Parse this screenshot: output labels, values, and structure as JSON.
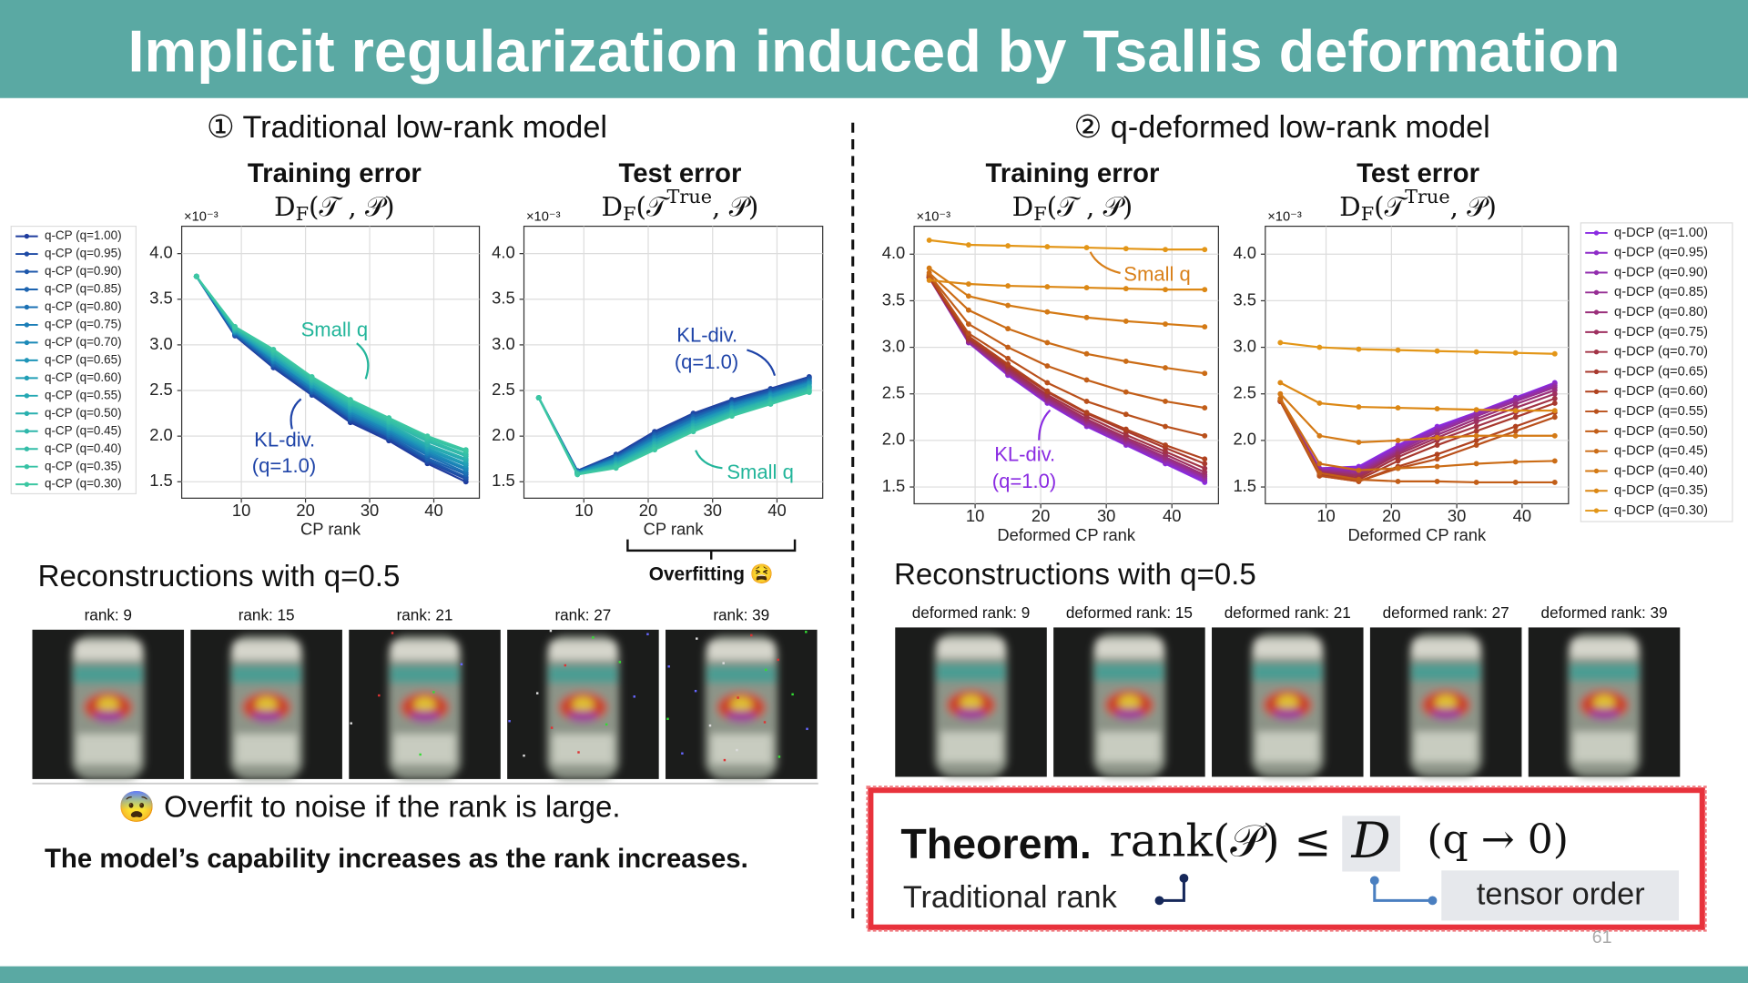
{
  "header": {
    "title": "Implicit regularization induced by Tsallis deformation"
  },
  "sections": [
    "① Traditional low-rank model",
    "② q-deformed low-rank model"
  ],
  "chart_data": [
    {
      "type": "line",
      "title": "Training error",
      "formula": [
        "D",
        "F",
        "(𝒯 , 𝒫)"
      ],
      "scale_label": "×10⁻³",
      "xlabel": "CP rank",
      "x": [
        3,
        9,
        15,
        21,
        27,
        33,
        39,
        45
      ],
      "xlim": [
        0.7,
        47.1
      ],
      "ylim": [
        1.32,
        4.3
      ],
      "xticks": [
        10,
        20,
        30,
        40
      ],
      "yticks": [
        1.5,
        {
          "value": 2,
          "label": "2.0"
        },
        2.5,
        {
          "value": 3,
          "label": "3.0"
        },
        3.5,
        {
          "value": 4,
          "label": "4.0"
        }
      ],
      "grid": true,
      "annotations": [
        "Small q",
        "KL-div.",
        "(q=1.0)"
      ],
      "series": [
        {
          "name": "q-CP (q=1.00)",
          "color": "#1f3c9e",
          "values": [
            3.75,
            3.1,
            2.75,
            2.45,
            2.15,
            1.95,
            1.7,
            1.5
          ]
        },
        {
          "name": "q-CP (q=0.95)",
          "color": "#1e4aa5",
          "values": [
            3.75,
            3.11,
            2.76,
            2.46,
            2.17,
            1.97,
            1.72,
            1.53
          ]
        },
        {
          "name": "q-CP (q=0.90)",
          "color": "#1d57ab",
          "values": [
            3.75,
            3.11,
            2.78,
            2.48,
            2.19,
            1.99,
            1.74,
            1.55
          ]
        },
        {
          "name": "q-CP (q=0.85)",
          "color": "#1c64b0",
          "values": [
            3.75,
            3.12,
            2.79,
            2.49,
            2.2,
            2.0,
            1.76,
            1.58
          ]
        },
        {
          "name": "q-CP (q=0.80)",
          "color": "#1b71b4",
          "values": [
            3.75,
            3.13,
            2.81,
            2.51,
            2.22,
            2.02,
            1.79,
            1.6
          ]
        },
        {
          "name": "q-CP (q=0.75)",
          "color": "#1b7eb7",
          "values": [
            3.75,
            3.14,
            2.82,
            2.52,
            2.24,
            2.04,
            1.81,
            1.63
          ]
        },
        {
          "name": "q-CP (q=0.70)",
          "color": "#1c8ab8",
          "values": [
            3.75,
            3.14,
            2.84,
            2.54,
            2.26,
            2.06,
            1.83,
            1.65
          ]
        },
        {
          "name": "q-CP (q=0.65)",
          "color": "#1e95b8",
          "values": [
            3.75,
            3.15,
            2.85,
            2.55,
            2.28,
            2.08,
            1.85,
            1.68
          ]
        },
        {
          "name": "q-CP (q=0.60)",
          "color": "#219fb6",
          "values": [
            3.75,
            3.16,
            2.86,
            2.56,
            2.29,
            2.09,
            1.87,
            1.7
          ]
        },
        {
          "name": "q-CP (q=0.55)",
          "color": "#25a8b3",
          "values": [
            3.75,
            3.16,
            2.88,
            2.58,
            2.31,
            2.11,
            1.89,
            1.73
          ]
        },
        {
          "name": "q-CP (q=0.50)",
          "color": "#2ab0af",
          "values": [
            3.75,
            3.17,
            2.89,
            2.59,
            2.33,
            2.13,
            1.91,
            1.75
          ]
        },
        {
          "name": "q-CP (q=0.45)",
          "color": "#2fb7ab",
          "values": [
            3.75,
            3.18,
            2.91,
            2.61,
            2.35,
            2.15,
            1.94,
            1.78
          ]
        },
        {
          "name": "q-CP (q=0.40)",
          "color": "#33bda8",
          "values": [
            3.75,
            3.19,
            2.92,
            2.62,
            2.36,
            2.16,
            1.96,
            1.8
          ]
        },
        {
          "name": "q-CP (q=0.35)",
          "color": "#37c2a5",
          "values": [
            3.75,
            3.19,
            2.94,
            2.64,
            2.38,
            2.18,
            1.98,
            1.83
          ]
        },
        {
          "name": "q-CP (q=0.30)",
          "color": "#3cc7a2",
          "values": [
            3.75,
            3.2,
            2.95,
            2.65,
            2.4,
            2.2,
            2.0,
            1.85
          ]
        }
      ]
    },
    {
      "type": "line",
      "title": "Test error",
      "formula": [
        "D",
        "F",
        "(𝒯",
        "True",
        ", 𝒫)"
      ],
      "scale_label": "×10⁻³",
      "xlabel": "CP rank",
      "x": [
        3,
        9,
        15,
        21,
        27,
        33,
        39,
        45
      ],
      "xlim": [
        0.7,
        47.1
      ],
      "ylim": [
        1.32,
        4.3
      ],
      "xticks": [
        10,
        20,
        30,
        40
      ],
      "yticks": [
        1.5,
        {
          "value": 2,
          "label": "2.0"
        },
        2.5,
        {
          "value": 3,
          "label": "3.0"
        },
        3.5,
        {
          "value": 4,
          "label": "4.0"
        }
      ],
      "grid": true,
      "annotations": [
        "KL-div.",
        "(q=1.0)",
        "Small q"
      ],
      "series": [
        {
          "color": "#1f3c9e",
          "values": [
            2.42,
            1.62,
            1.8,
            2.05,
            2.25,
            2.4,
            2.52,
            2.65
          ]
        },
        {
          "color": "#1e4aa5",
          "values": [
            2.42,
            1.62,
            1.79,
            2.04,
            2.24,
            2.39,
            2.51,
            2.64
          ]
        },
        {
          "color": "#1d57ab",
          "values": [
            2.42,
            1.61,
            1.78,
            2.02,
            2.22,
            2.37,
            2.5,
            2.63
          ]
        },
        {
          "color": "#1c64b0",
          "values": [
            2.42,
            1.61,
            1.77,
            2.01,
            2.21,
            2.36,
            2.48,
            2.61
          ]
        },
        {
          "color": "#1b71b4",
          "values": [
            2.42,
            1.61,
            1.76,
            1.99,
            2.19,
            2.35,
            2.47,
            2.6
          ]
        },
        {
          "color": "#1b7eb7",
          "values": [
            2.42,
            1.61,
            1.75,
            1.98,
            2.18,
            2.34,
            2.46,
            2.59
          ]
        },
        {
          "color": "#1c8ab8",
          "values": [
            2.42,
            1.6,
            1.74,
            1.96,
            2.16,
            2.32,
            2.45,
            2.58
          ]
        },
        {
          "color": "#1e95b8",
          "values": [
            2.42,
            1.6,
            1.73,
            1.95,
            2.15,
            2.31,
            2.44,
            2.57
          ]
        },
        {
          "color": "#219fb6",
          "values": [
            2.42,
            1.6,
            1.71,
            1.94,
            2.14,
            2.3,
            2.42,
            2.55
          ]
        },
        {
          "color": "#25a8b3",
          "values": [
            2.42,
            1.59,
            1.7,
            1.92,
            2.12,
            2.28,
            2.41,
            2.54
          ]
        },
        {
          "color": "#2ab0af",
          "values": [
            2.42,
            1.59,
            1.69,
            1.91,
            2.11,
            2.27,
            2.4,
            2.53
          ]
        },
        {
          "color": "#2fb7ab",
          "values": [
            2.42,
            1.59,
            1.68,
            1.89,
            2.09,
            2.26,
            2.39,
            2.52
          ]
        },
        {
          "color": "#33bda8",
          "values": [
            2.42,
            1.59,
            1.67,
            1.88,
            2.08,
            2.25,
            2.37,
            2.5
          ]
        },
        {
          "color": "#37c2a5",
          "values": [
            2.42,
            1.58,
            1.66,
            1.86,
            2.06,
            2.23,
            2.36,
            2.49
          ]
        },
        {
          "color": "#3cc7a2",
          "values": [
            2.42,
            1.58,
            1.65,
            1.85,
            2.05,
            2.22,
            2.35,
            2.48
          ]
        }
      ]
    },
    {
      "type": "line",
      "title": "Training error",
      "formula": [
        "D",
        "F",
        "(𝒯 , 𝒫)"
      ],
      "scale_label": "×10⁻³",
      "xlabel": "Deformed CP rank",
      "x": [
        3,
        9,
        15,
        21,
        27,
        33,
        39,
        45
      ],
      "xlim": [
        0.7,
        47.1
      ],
      "ylim": [
        1.32,
        4.3
      ],
      "xticks": [
        10,
        20,
        30,
        40
      ],
      "yticks": [
        1.5,
        {
          "value": 2,
          "label": "2.0"
        },
        2.5,
        {
          "value": 3,
          "label": "3.0"
        },
        3.5,
        {
          "value": 4,
          "label": "4.0"
        }
      ],
      "grid": true,
      "annotations": [
        "Small q",
        "KL-div.",
        "(q=1.0)"
      ],
      "series": [
        {
          "color": "#8a2be2",
          "values": [
            3.75,
            3.05,
            2.7,
            2.4,
            2.15,
            1.95,
            1.75,
            1.55
          ]
        },
        {
          "color": "#8e2cc8",
          "values": [
            3.75,
            3.05,
            2.71,
            2.41,
            2.16,
            1.96,
            1.76,
            1.57
          ]
        },
        {
          "color": "#922dae",
          "values": [
            3.75,
            3.06,
            2.72,
            2.42,
            2.17,
            1.97,
            1.78,
            1.59
          ]
        },
        {
          "color": "#962e94",
          "values": [
            3.75,
            3.06,
            2.73,
            2.43,
            2.19,
            1.99,
            1.8,
            1.61
          ]
        },
        {
          "color": "#9a2f7a",
          "values": [
            3.75,
            3.07,
            2.74,
            2.45,
            2.21,
            2.01,
            1.82,
            1.63
          ]
        },
        {
          "color": "#9e3060",
          "values": [
            3.75,
            3.08,
            2.76,
            2.47,
            2.23,
            2.03,
            1.85,
            1.66
          ]
        },
        {
          "color": "#a23346",
          "values": [
            3.75,
            3.09,
            2.78,
            2.49,
            2.26,
            2.06,
            1.88,
            1.7
          ]
        },
        {
          "color": "#a8392e",
          "values": [
            3.75,
            3.1,
            2.8,
            2.52,
            2.29,
            2.1,
            1.92,
            1.75
          ]
        },
        {
          "color": "#b0421f",
          "values": [
            3.76,
            3.12,
            2.82,
            2.53,
            2.3,
            2.12,
            1.95,
            1.8
          ]
        },
        {
          "color": "#b9501b",
          "values": [
            3.77,
            3.15,
            2.88,
            2.62,
            2.42,
            2.28,
            2.15,
            2.05
          ]
        },
        {
          "color": "#c25e18",
          "values": [
            3.78,
            3.25,
            3.0,
            2.8,
            2.65,
            2.52,
            2.42,
            2.35
          ]
        },
        {
          "color": "#cb6c16",
          "values": [
            3.8,
            3.4,
            3.2,
            3.05,
            2.93,
            2.85,
            2.78,
            2.72
          ]
        },
        {
          "color": "#d47a15",
          "values": [
            3.85,
            3.55,
            3.45,
            3.38,
            3.32,
            3.28,
            3.25,
            3.22
          ]
        },
        {
          "color": "#dc8815",
          "values": [
            3.72,
            3.68,
            3.66,
            3.65,
            3.64,
            3.63,
            3.62,
            3.62
          ]
        },
        {
          "color": "#e39618",
          "values": [
            4.15,
            4.1,
            4.09,
            4.08,
            4.07,
            4.06,
            4.05,
            4.05
          ]
        }
      ]
    },
    {
      "type": "line",
      "title": "Test error",
      "formula": [
        "D",
        "F",
        "(𝒯",
        "True",
        ", 𝒫)"
      ],
      "scale_label": "×10⁻³",
      "xlabel": "Deformed CP rank",
      "x": [
        3,
        9,
        15,
        21,
        27,
        33,
        39,
        45
      ],
      "xlim": [
        0.7,
        47.1
      ],
      "ylim": [
        1.32,
        4.3
      ],
      "xticks": [
        10,
        20,
        30,
        40
      ],
      "yticks": [
        1.5,
        {
          "value": 2,
          "label": "2.0"
        },
        2.5,
        {
          "value": 3,
          "label": "3.0"
        },
        3.5,
        {
          "value": 4,
          "label": "4.0"
        }
      ],
      "grid": true,
      "annotations": [],
      "series": [
        {
          "name": "q-DCP (q=1.00)",
          "color": "#8a2be2",
          "values": [
            2.42,
            1.7,
            1.72,
            1.95,
            2.15,
            2.3,
            2.46,
            2.62
          ]
        },
        {
          "name": "q-DCP (q=0.95)",
          "color": "#8e2cc8",
          "values": [
            2.42,
            1.7,
            1.7,
            1.93,
            2.13,
            2.29,
            2.45,
            2.61
          ]
        },
        {
          "name": "q-DCP (q=0.90)",
          "color": "#922dae",
          "values": [
            2.42,
            1.69,
            1.68,
            1.91,
            2.11,
            2.28,
            2.44,
            2.59
          ]
        },
        {
          "name": "q-DCP (q=0.85)",
          "color": "#962e94",
          "values": [
            2.42,
            1.68,
            1.66,
            1.89,
            2.09,
            2.26,
            2.42,
            2.57
          ]
        },
        {
          "name": "q-DCP (q=0.80)",
          "color": "#9a2f7a",
          "values": [
            2.42,
            1.67,
            1.64,
            1.87,
            2.06,
            2.23,
            2.39,
            2.54
          ]
        },
        {
          "name": "q-DCP (q=0.75)",
          "color": "#9e3060",
          "values": [
            2.42,
            1.66,
            1.62,
            1.85,
            2.03,
            2.2,
            2.35,
            2.5
          ]
        },
        {
          "name": "q-DCP (q=0.70)",
          "color": "#a23346",
          "values": [
            2.42,
            1.65,
            1.6,
            1.82,
            2.0,
            2.15,
            2.3,
            2.45
          ]
        },
        {
          "name": "q-DCP (q=0.65)",
          "color": "#a8392e",
          "values": [
            2.42,
            1.63,
            1.58,
            1.78,
            1.95,
            2.1,
            2.25,
            2.4
          ]
        },
        {
          "name": "q-DCP (q=0.60)",
          "color": "#b0421f",
          "values": [
            2.42,
            1.62,
            1.56,
            1.72,
            1.85,
            2.0,
            2.15,
            2.3
          ]
        },
        {
          "name": "q-DCP (q=0.55)",
          "color": "#b9501b",
          "values": [
            2.43,
            1.62,
            1.56,
            1.7,
            1.8,
            1.95,
            2.1,
            2.25
          ]
        },
        {
          "name": "q-DCP (q=0.50)",
          "color": "#c25e18",
          "values": [
            2.43,
            1.65,
            1.58,
            1.56,
            1.56,
            1.55,
            1.55,
            1.55
          ]
        },
        {
          "name": "q-DCP (q=0.45)",
          "color": "#cb6c16",
          "values": [
            2.45,
            1.75,
            1.68,
            1.7,
            1.72,
            1.75,
            1.77,
            1.78
          ]
        },
        {
          "name": "q-DCP (q=0.40)",
          "color": "#d47a15",
          "values": [
            2.5,
            2.05,
            1.98,
            2.0,
            2.03,
            2.05,
            2.05,
            2.05
          ]
        },
        {
          "name": "q-DCP (q=0.35)",
          "color": "#dc8815",
          "values": [
            2.62,
            2.4,
            2.36,
            2.35,
            2.34,
            2.33,
            2.32,
            2.32
          ]
        },
        {
          "name": "q-DCP (q=0.30)",
          "color": "#e39618",
          "values": [
            3.05,
            3.0,
            2.98,
            2.97,
            2.96,
            2.95,
            2.94,
            2.93
          ]
        }
      ]
    }
  ],
  "overfitting": "Overfitting 😫",
  "reconstructions": [
    {
      "title": "Reconstructions with q=0.5",
      "labels": [
        "rank: 9",
        "rank: 15",
        "rank: 21",
        "rank: 27",
        "rank: 39"
      ]
    },
    {
      "title": "Reconstructions with q=0.5",
      "labels": [
        "deformed rank: 9",
        "deformed rank: 15",
        "deformed rank: 21",
        "deformed rank: 27",
        "deformed rank: 39"
      ]
    }
  ],
  "notes": [
    "😨 Overfit to noise if the rank is large.",
    "The model’s capability increases as the rank increases."
  ],
  "theorem": {
    "label": "Theorem.",
    "lhs": "rank(𝒫) ≤",
    "bound": "D",
    "condition": "(q → 0)",
    "traditional": "Traditional rank",
    "tensor": "tensor order"
  },
  "page_number": "61"
}
